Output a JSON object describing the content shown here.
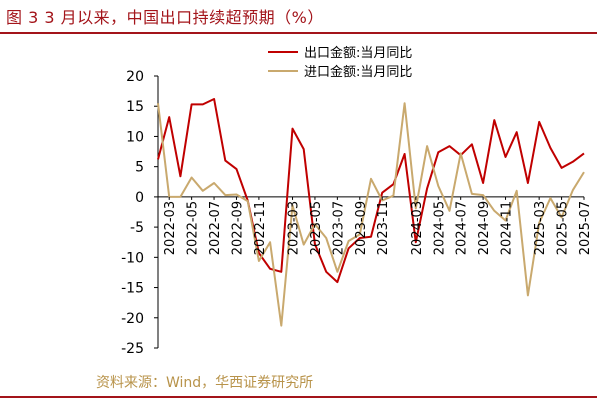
{
  "figure": {
    "title": "图 3 3 月以来，中国出口持续超预期（%）",
    "source": "资料来源：Wind，华西证券研究所"
  },
  "colors": {
    "export": "#c00000",
    "import": "#c9a96e",
    "title": "#a3141a",
    "axis": "#000000",
    "source": "#b8934a"
  },
  "chart_data": {
    "type": "line",
    "title": "",
    "xlabel": "",
    "ylabel": "",
    "ylim": [
      -25,
      20
    ],
    "yticks": [
      20,
      15,
      10,
      5,
      0,
      -5,
      -10,
      -15,
      -20,
      -25
    ],
    "grid": false,
    "legend_position": "top-center",
    "x": [
      "2022-01/02",
      "2022-03",
      "2022-04",
      "2022-05",
      "2022-06",
      "2022-07",
      "2022-08",
      "2022-09",
      "2022-10",
      "2022-11",
      "2022-12",
      "2023-01/02",
      "2023-03",
      "2023-04",
      "2023-05",
      "2023-06",
      "2023-07",
      "2023-08",
      "2023-09",
      "2023-10",
      "2023-11",
      "2023-12",
      "2024-01/02",
      "2024-03",
      "2024-04",
      "2024-05",
      "2024-06",
      "2024-07",
      "2024-08",
      "2024-09",
      "2024-10",
      "2024-11",
      "2024-12",
      "2025-01/02",
      "2025-03",
      "2025-04",
      "2025-05",
      "2025-06",
      "2025-07"
    ],
    "x_tick_labels": [
      "2022-03",
      "2022-05",
      "2022-07",
      "2022-09",
      "2022-11",
      "2023-01",
      "2023-03",
      "2023-05",
      "2023-07",
      "2023-09",
      "2023-11",
      "2024-01",
      "2024-03",
      "2024-05",
      "2024-07",
      "2024-09",
      "2024-11",
      "2025-01",
      "2025-03",
      "2025-05",
      "2025-07"
    ],
    "series": [
      {
        "name": "出口金额:当月同比",
        "color": "#c00000",
        "values": [
          6.2,
          13.2,
          3.4,
          15.3,
          15.3,
          16.2,
          6.0,
          4.6,
          -0.6,
          -9.3,
          -11.9,
          -12.4,
          11.3,
          7.9,
          -7.8,
          -12.4,
          -14.1,
          -8.5,
          -6.8,
          -6.6,
          0.7,
          2.1,
          7.1,
          -7.5,
          1.4,
          7.4,
          8.4,
          6.9,
          8.7,
          2.3,
          12.7,
          6.6,
          10.7,
          2.3,
          12.4,
          8.1,
          4.8,
          5.8,
          7.2
        ]
      },
      {
        "name": "进口金额:当月同比",
        "color": "#c9a96e",
        "values": [
          15.5,
          0.0,
          0.0,
          3.2,
          1.0,
          2.3,
          0.3,
          0.4,
          -0.7,
          -10.6,
          -7.5,
          -21.3,
          -1.4,
          -7.9,
          -4.5,
          -6.8,
          -12.4,
          -7.3,
          -6.2,
          3.0,
          -0.6,
          0.2,
          15.5,
          -1.9,
          8.4,
          1.8,
          -2.3,
          7.2,
          0.5,
          0.3,
          -2.3,
          -3.9,
          1.0,
          -16.3,
          -4.3,
          -0.2,
          -3.4,
          1.1,
          4.1
        ]
      }
    ]
  }
}
